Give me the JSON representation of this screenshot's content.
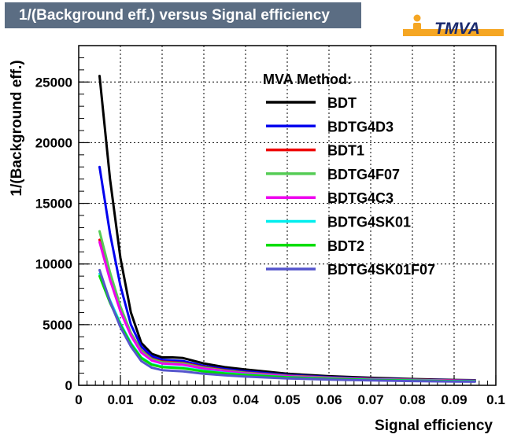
{
  "title": "1/(Background eff.) versus Signal efficiency",
  "logo_text": "TMVA",
  "legend_header": "MVA Method:",
  "chart_data": {
    "type": "line",
    "title": "1/(Background eff.) versus Signal efficiency",
    "xlabel": "Signal efficiency",
    "ylabel": "1/(Background eff.)",
    "xlim": [
      0,
      0.1
    ],
    "ylim": [
      0,
      28000
    ],
    "xticks": [
      0,
      0.01,
      0.02,
      0.03,
      0.04,
      0.05,
      0.06,
      0.07,
      0.08,
      0.09,
      0.1
    ],
    "xtick_labels": [
      "0",
      "0.01",
      "0.02",
      "0.03",
      "0.04",
      "0.05",
      "0.06",
      "0.07",
      "0.08",
      "0.09",
      "0.1"
    ],
    "yticks": [
      0,
      5000,
      10000,
      15000,
      20000,
      25000
    ],
    "ytick_labels": [
      "0",
      "5000",
      "10000",
      "15000",
      "20000",
      "25000"
    ],
    "grid": true,
    "legend_position": "top-right",
    "series": [
      {
        "name": "BDT",
        "color": "#000000",
        "x": [
          0.005,
          0.0075,
          0.01,
          0.0125,
          0.015,
          0.0175,
          0.02,
          0.0225,
          0.025,
          0.03,
          0.035,
          0.04,
          0.05,
          0.06,
          0.07,
          0.08,
          0.09,
          0.095
        ],
        "y": [
          25500,
          17000,
          10500,
          6000,
          3500,
          2600,
          2300,
          2300,
          2250,
          1800,
          1500,
          1300,
          950,
          750,
          620,
          520,
          450,
          420
        ]
      },
      {
        "name": "BDTG4D3",
        "color": "#0000ee",
        "x": [
          0.005,
          0.0075,
          0.01,
          0.0125,
          0.015,
          0.0175,
          0.02,
          0.0225,
          0.025,
          0.03,
          0.035,
          0.04,
          0.05,
          0.06,
          0.07,
          0.08,
          0.09,
          0.095
        ],
        "y": [
          18000,
          12500,
          8200,
          5000,
          3200,
          2400,
          2100,
          2050,
          2000,
          1600,
          1350,
          1150,
          850,
          680,
          560,
          480,
          420,
          400
        ]
      },
      {
        "name": "BDT1",
        "color": "#ee0000",
        "x": [
          0.005,
          0.0075,
          0.01,
          0.0125,
          0.015,
          0.0175,
          0.02,
          0.0225,
          0.025,
          0.03,
          0.035,
          0.04,
          0.05,
          0.06,
          0.07,
          0.08,
          0.09,
          0.095
        ],
        "y": [
          12000,
          9000,
          6400,
          4300,
          2900,
          2200,
          1950,
          1900,
          1850,
          1500,
          1250,
          1050,
          800,
          640,
          530,
          460,
          400,
          380
        ]
      },
      {
        "name": "BDTG4F07",
        "color": "#55cc55",
        "x": [
          0.005,
          0.0075,
          0.01,
          0.0125,
          0.015,
          0.0175,
          0.02,
          0.0225,
          0.025,
          0.03,
          0.035,
          0.04,
          0.05,
          0.06,
          0.07,
          0.08,
          0.09,
          0.095
        ],
        "y": [
          12700,
          9300,
          6500,
          4300,
          2850,
          2150,
          1900,
          1850,
          1800,
          1450,
          1220,
          1030,
          780,
          620,
          520,
          450,
          390,
          370
        ]
      },
      {
        "name": "BDTG4C3",
        "color": "#ee00ee",
        "x": [
          0.005,
          0.0075,
          0.01,
          0.0125,
          0.015,
          0.0175,
          0.02,
          0.0225,
          0.025,
          0.03,
          0.035,
          0.04,
          0.05,
          0.06,
          0.07,
          0.08,
          0.09,
          0.095
        ],
        "y": [
          11800,
          8700,
          6100,
          4100,
          2700,
          2050,
          1800,
          1750,
          1700,
          1380,
          1160,
          980,
          750,
          600,
          500,
          430,
          380,
          360
        ]
      },
      {
        "name": "BDTG4SK01",
        "color": "#00eeee",
        "x": [
          0.005,
          0.0075,
          0.01,
          0.0125,
          0.015,
          0.0175,
          0.02,
          0.0225,
          0.025,
          0.03,
          0.035,
          0.04,
          0.05,
          0.06,
          0.07,
          0.08,
          0.09,
          0.095
        ],
        "y": [
          9200,
          7000,
          5100,
          3500,
          2300,
          1750,
          1550,
          1500,
          1450,
          1200,
          1020,
          880,
          680,
          550,
          460,
          400,
          350,
          335
        ]
      },
      {
        "name": "BDT2",
        "color": "#00dd00",
        "x": [
          0.005,
          0.0075,
          0.01,
          0.0125,
          0.015,
          0.0175,
          0.02,
          0.0225,
          0.025,
          0.03,
          0.035,
          0.04,
          0.05,
          0.06,
          0.07,
          0.08,
          0.09,
          0.095
        ],
        "y": [
          9000,
          6800,
          5000,
          3400,
          2250,
          1700,
          1500,
          1450,
          1400,
          1150,
          980,
          850,
          660,
          540,
          450,
          390,
          345,
          330
        ]
      },
      {
        "name": "BDTG4SK01F07",
        "color": "#5555cc",
        "x": [
          0.005,
          0.0075,
          0.01,
          0.0125,
          0.015,
          0.0175,
          0.02,
          0.0225,
          0.025,
          0.03,
          0.035,
          0.04,
          0.05,
          0.06,
          0.07,
          0.08,
          0.09,
          0.095
        ],
        "y": [
          9500,
          6900,
          4800,
          3200,
          2000,
          1450,
          1250,
          1200,
          1150,
          950,
          820,
          720,
          570,
          470,
          400,
          350,
          310,
          300
        ]
      }
    ]
  }
}
